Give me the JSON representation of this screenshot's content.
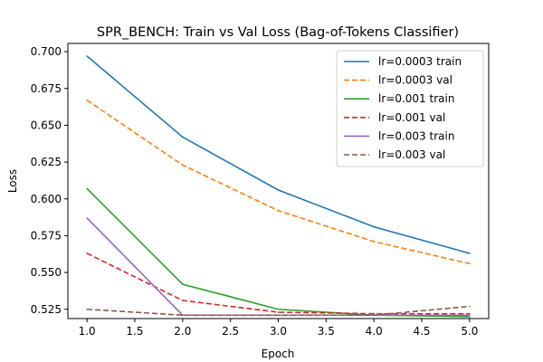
{
  "chart_data": {
    "type": "line",
    "title": "SPR_BENCH: Train vs Val Loss (Bag-of-Tokens Classifier)",
    "xlabel": "Epoch",
    "ylabel": "Loss",
    "xlim": [
      0.8,
      5.2
    ],
    "ylim": [
      0.5187,
      0.7056
    ],
    "xticks": [
      1.0,
      1.5,
      2.0,
      2.5,
      3.0,
      3.5,
      4.0,
      4.5,
      5.0
    ],
    "xtick_labels": [
      "1.0",
      "1.5",
      "2.0",
      "2.5",
      "3.0",
      "3.5",
      "4.0",
      "4.5",
      "5.0"
    ],
    "yticks": [
      0.525,
      0.55,
      0.575,
      0.6,
      0.625,
      0.65,
      0.675,
      0.7
    ],
    "ytick_labels": [
      "0.525",
      "0.550",
      "0.575",
      "0.600",
      "0.625",
      "0.650",
      "0.675",
      "0.700"
    ],
    "grid": false,
    "legend_position": "top-right",
    "x": [
      1,
      2,
      3,
      4,
      5
    ],
    "series": [
      {
        "name": "lr=0.0003 train",
        "color": "#1f77b4",
        "style": "solid",
        "values": [
          0.697,
          0.642,
          0.606,
          0.581,
          0.563
        ]
      },
      {
        "name": "lr=0.0003 val",
        "color": "#ff7f0e",
        "style": "dashed",
        "values": [
          0.667,
          0.623,
          0.592,
          0.571,
          0.556
        ]
      },
      {
        "name": "lr=0.001 train",
        "color": "#2ca02c",
        "style": "solid",
        "values": [
          0.607,
          0.542,
          0.525,
          0.521,
          0.52
        ]
      },
      {
        "name": "lr=0.001 val",
        "color": "#d62728",
        "style": "dashed",
        "values": [
          0.563,
          0.531,
          0.523,
          0.522,
          0.522
        ]
      },
      {
        "name": "lr=0.003 train",
        "color": "#9467bd",
        "style": "solid",
        "values": [
          0.587,
          0.521,
          0.521,
          0.521,
          0.521
        ]
      },
      {
        "name": "lr=0.003 val",
        "color": "#8c564b",
        "style": "dashed",
        "values": [
          0.525,
          0.521,
          0.521,
          0.521,
          0.527
        ]
      }
    ]
  }
}
